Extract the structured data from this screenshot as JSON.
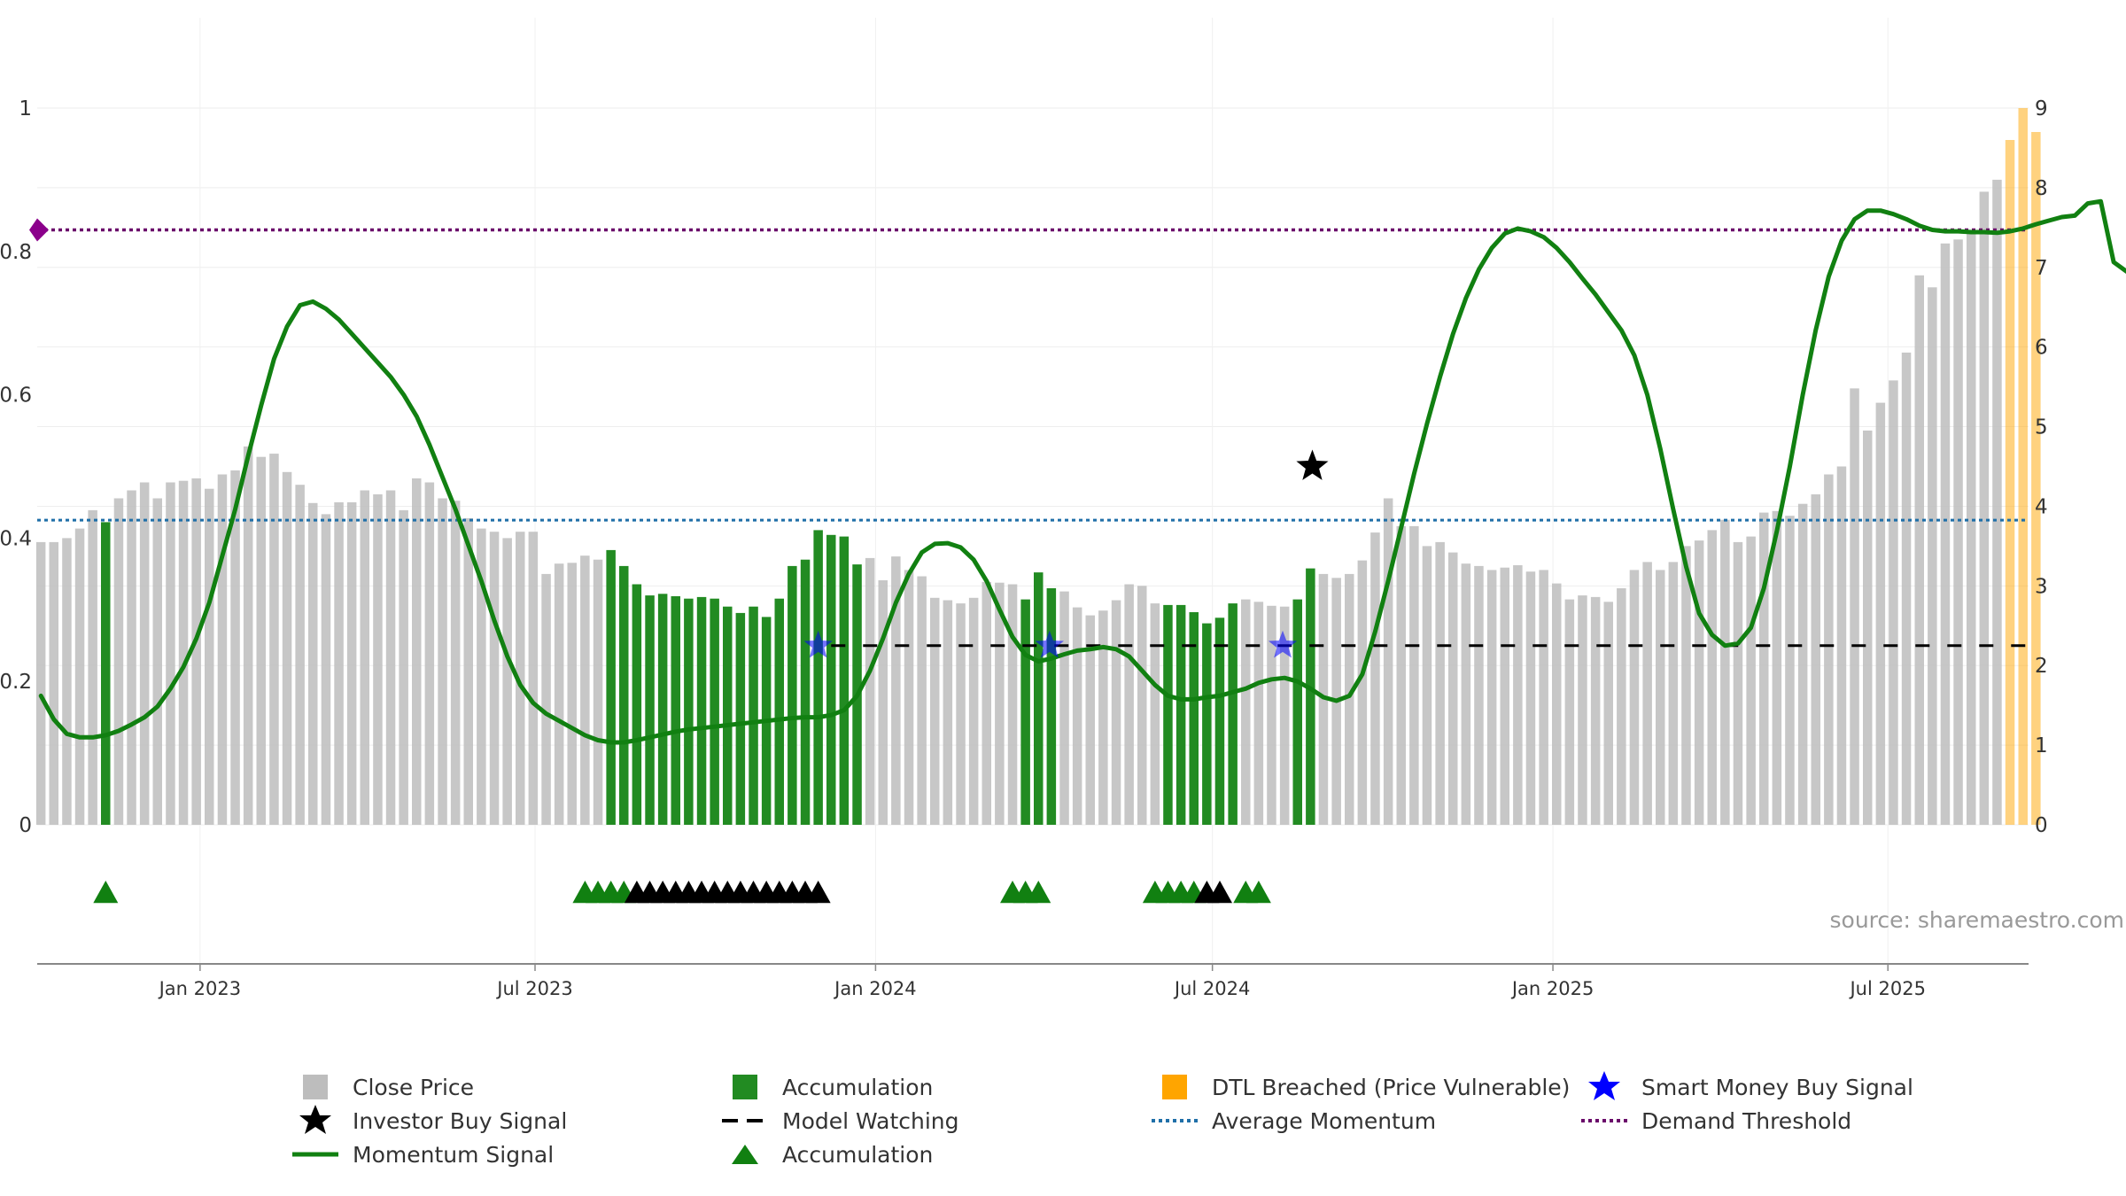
{
  "colors": {
    "close": "#bdbdbd",
    "accumulation": "#228b22",
    "dtl": "#ffa500",
    "momentum": "#118011",
    "average": "#1f6fa8",
    "demand": "#6a0a6a",
    "investor": "#000000",
    "smart": "#0000ff",
    "watching": "#000000"
  },
  "axes": {
    "left_ticks": [
      "0",
      "0.2",
      "0.4",
      "0.6",
      "0.8",
      "1"
    ],
    "right_ticks": [
      "0",
      "1",
      "2",
      "3",
      "4",
      "5",
      "6",
      "7",
      "8",
      "9"
    ],
    "x_ticks": [
      "Jan 2023",
      "Jul 2023",
      "Jan 2024",
      "Jul 2024",
      "Jan 2025",
      "Jul 2025"
    ]
  },
  "source": "source: sharemaestro.com",
  "legend": [
    {
      "key": "close",
      "label": "Close Price"
    },
    {
      "key": "accum_bar",
      "label": "Accumulation"
    },
    {
      "key": "dtl",
      "label": "DTL Breached (Price Vulnerable)"
    },
    {
      "key": "smart",
      "label": "Smart Money Buy Signal"
    },
    {
      "key": "investor",
      "label": "Investor Buy Signal"
    },
    {
      "key": "watching",
      "label": "Model Watching"
    },
    {
      "key": "average",
      "label": "Average Momentum"
    },
    {
      "key": "demand",
      "label": "Demand Threshold"
    },
    {
      "key": "momentum",
      "label": "Momentum Signal"
    },
    {
      "key": "accum_tri",
      "label": "Accumulation"
    }
  ],
  "chart_data": {
    "type": "bar",
    "y_left_range": [
      0,
      1
    ],
    "y_right_range": [
      0,
      9
    ],
    "x_range": [
      "2022-10-05",
      "2025-09-15"
    ],
    "average_momentum": 0.425,
    "demand_threshold": 0.83,
    "bar_start_date": "2022-10-07",
    "bar_interval_days": 7,
    "close_prices": [
      3.55,
      3.55,
      3.6,
      3.72,
      3.95,
      3.8,
      4.1,
      4.2,
      4.3,
      4.1,
      4.3,
      4.32,
      4.35,
      4.22,
      4.4,
      4.45,
      4.75,
      4.62,
      4.66,
      4.43,
      4.27,
      4.04,
      3.9,
      4.05,
      4.05,
      4.2,
      4.15,
      4.2,
      3.95,
      4.35,
      4.3,
      4.1,
      4.07,
      3.85,
      3.72,
      3.68,
      3.6,
      3.68,
      3.68,
      3.15,
      3.28,
      3.29,
      3.38,
      3.33,
      3.45,
      3.25,
      3.02,
      2.88,
      2.9,
      2.87,
      2.84,
      2.86,
      2.84,
      2.74,
      2.66,
      2.74,
      2.61,
      2.84,
      3.25,
      3.33,
      3.7,
      3.64,
      3.62,
      3.27,
      3.35,
      3.07,
      3.37,
      3.2,
      3.12,
      2.85,
      2.82,
      2.78,
      2.85,
      3.05,
      3.04,
      3.02,
      2.83,
      3.17,
      2.97,
      2.93,
      2.73,
      2.63,
      2.69,
      2.82,
      3.02,
      3.0,
      2.78,
      2.76,
      2.76,
      2.67,
      2.53,
      2.6,
      2.78,
      2.83,
      2.8,
      2.75,
      2.74,
      2.83,
      3.22,
      3.15,
      3.1,
      3.15,
      3.32,
      3.67,
      4.1,
      3.75,
      3.75,
      3.5,
      3.55,
      3.42,
      3.28,
      3.25,
      3.2,
      3.23,
      3.26,
      3.18,
      3.2,
      3.03,
      2.83,
      2.88,
      2.86,
      2.8,
      2.97,
      3.2,
      3.3,
      3.2,
      3.3,
      3.5,
      3.57,
      3.7,
      3.83,
      3.55,
      3.62,
      3.92,
      3.94,
      3.88,
      4.03,
      4.15,
      4.4,
      4.5,
      5.48,
      4.95,
      5.3,
      5.58,
      5.93,
      6.9,
      6.75,
      7.3,
      7.35,
      7.45,
      7.95,
      8.1,
      8.6,
      9.0,
      8.7
    ],
    "accumulation_ranges": [
      [
        5,
        5
      ],
      [
        44,
        63
      ],
      [
        76,
        78
      ],
      [
        87,
        92
      ],
      [
        97,
        98
      ]
    ],
    "dtl_range": [
      152,
      156
    ],
    "momentum": [
      0.18,
      0.147,
      0.127,
      0.122,
      0.122,
      0.125,
      0.131,
      0.14,
      0.15,
      0.165,
      0.19,
      0.22,
      0.26,
      0.31,
      0.375,
      0.44,
      0.515,
      0.585,
      0.65,
      0.695,
      0.725,
      0.73,
      0.72,
      0.705,
      0.685,
      0.665,
      0.645,
      0.625,
      0.6,
      0.57,
      0.53,
      0.485,
      0.44,
      0.39,
      0.34,
      0.285,
      0.235,
      0.195,
      0.17,
      0.155,
      0.145,
      0.135,
      0.125,
      0.118,
      0.115,
      0.115,
      0.118,
      0.122,
      0.126,
      0.13,
      0.133,
      0.135,
      0.137,
      0.139,
      0.141,
      0.143,
      0.145,
      0.147,
      0.149,
      0.15,
      0.15,
      0.153,
      0.16,
      0.18,
      0.215,
      0.26,
      0.31,
      0.35,
      0.38,
      0.392,
      0.393,
      0.387,
      0.37,
      0.34,
      0.3,
      0.262,
      0.237,
      0.228,
      0.232,
      0.238,
      0.243,
      0.245,
      0.248,
      0.245,
      0.235,
      0.215,
      0.195,
      0.18,
      0.175,
      0.175,
      0.178,
      0.18,
      0.185,
      0.19,
      0.198,
      0.203,
      0.205,
      0.2,
      0.19,
      0.178,
      0.173,
      0.18,
      0.21,
      0.27,
      0.34,
      0.415,
      0.49,
      0.56,
      0.625,
      0.685,
      0.735,
      0.775,
      0.805,
      0.825,
      0.832,
      0.828,
      0.82,
      0.805,
      0.785,
      0.762,
      0.74,
      0.715,
      0.69,
      0.655,
      0.6,
      0.525,
      0.44,
      0.36,
      0.295,
      0.265,
      0.25,
      0.253,
      0.275,
      0.33,
      0.41,
      0.5,
      0.6,
      0.69,
      0.765,
      0.815,
      0.845,
      0.857,
      0.857,
      0.852,
      0.845,
      0.836,
      0.83,
      0.828,
      0.828,
      0.827,
      0.827,
      0.826,
      0.828,
      0.832,
      0.838,
      0.843,
      0.848,
      0.85,
      0.867,
      0.87,
      0.785,
      0.772,
      0.773
    ],
    "investor_buy_signals": [
      {
        "date": "2024-08-24",
        "value": 0.5
      }
    ],
    "smart_money_buy_signals": [
      {
        "date": "2023-12-01",
        "value": 0.25
      },
      {
        "date": "2024-04-04",
        "value": 0.25
      },
      {
        "date": "2024-08-08",
        "value": 0.25
      }
    ],
    "model_watching": {
      "value": 0.25,
      "from": "2023-12-08",
      "to": "2025-09-12"
    },
    "marker_row_signals": [
      {
        "kind": "accumulation",
        "dates": [
          "2022-11-11",
          "2023-07-28",
          "2023-08-04",
          "2023-08-11",
          "2023-08-18",
          "2024-03-15",
          "2024-03-22",
          "2024-03-29",
          "2024-05-31",
          "2024-06-07",
          "2024-06-14",
          "2024-06-21",
          "2024-07-19",
          "2024-07-26"
        ]
      },
      {
        "kind": "investor",
        "dates": [
          "2023-08-25",
          "2023-09-01",
          "2023-09-08",
          "2023-09-15",
          "2023-09-22",
          "2023-09-29",
          "2023-10-06",
          "2023-10-13",
          "2023-10-20",
          "2023-10-27",
          "2023-11-03",
          "2023-11-10",
          "2023-11-17",
          "2023-11-24",
          "2023-12-01",
          "2024-06-28",
          "2024-07-05"
        ]
      }
    ]
  }
}
